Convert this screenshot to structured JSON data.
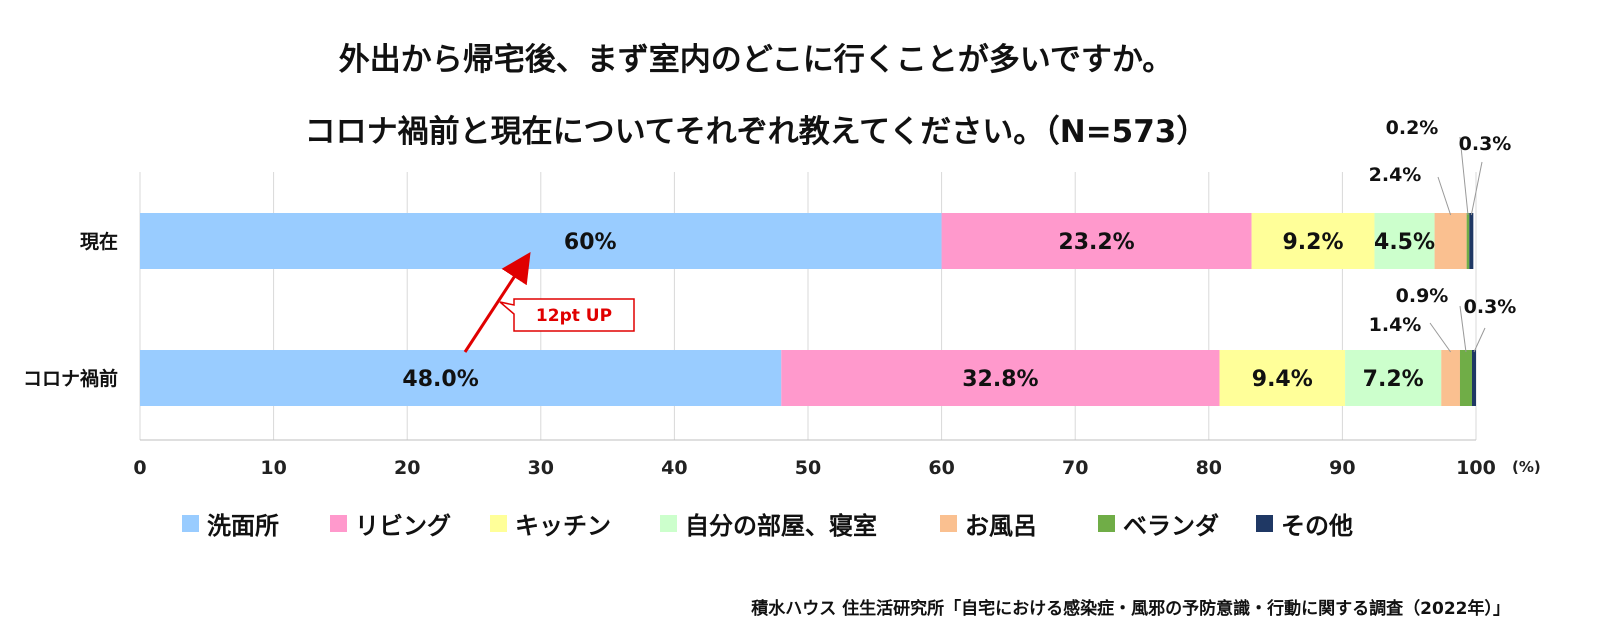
{
  "title_line1": "外出から帰宅後、まず室内のどこに行くことが多いですか。",
  "title_line2": "コロナ禍前と現在についてそれぞれ教えてください。（N=573）",
  "source": "積水ハウス 住生活研究所「自宅における感染症・風邪の予防意識・行動に関する調査（2022年）」",
  "annotation": "12pt UP",
  "colors": {
    "series": [
      "#99ccff",
      "#ff99cc",
      "#ffff99",
      "#ccffcc",
      "#fac090",
      "#70ad47",
      "#1f3864"
    ],
    "annotation": "#e00000"
  },
  "chart_data": {
    "type": "bar",
    "orientation": "horizontal",
    "stacked": true,
    "categories": [
      "現在",
      "コロナ禍前"
    ],
    "series": [
      {
        "name": "洗面所",
        "values": [
          60,
          48.0
        ],
        "labels": [
          "60%",
          "48.0%"
        ]
      },
      {
        "name": "リビング",
        "values": [
          23.2,
          32.8
        ],
        "labels": [
          "23.2%",
          "32.8%"
        ]
      },
      {
        "name": "キッチン",
        "values": [
          9.2,
          9.4
        ],
        "labels": [
          "9.2%",
          "9.4%"
        ]
      },
      {
        "name": "自分の部屋、寝室",
        "values": [
          4.5,
          7.2
        ],
        "labels": [
          "4.5%",
          "7.2%"
        ]
      },
      {
        "name": "お風呂",
        "values": [
          2.4,
          1.4
        ],
        "labels": [
          "2.4%",
          "1.4%"
        ]
      },
      {
        "name": "ベランダ",
        "values": [
          0.2,
          0.9
        ],
        "labels": [
          "0.2%",
          "0.9%"
        ]
      },
      {
        "name": "その他",
        "values": [
          0.3,
          0.3
        ],
        "labels": [
          "0.3%",
          "0.3%"
        ]
      }
    ],
    "xlim": [
      0,
      100
    ],
    "xticks": [
      0,
      10,
      20,
      30,
      40,
      50,
      60,
      70,
      80,
      90,
      100
    ],
    "xunit": "(%)",
    "grid": true,
    "legend_position": "bottom"
  }
}
